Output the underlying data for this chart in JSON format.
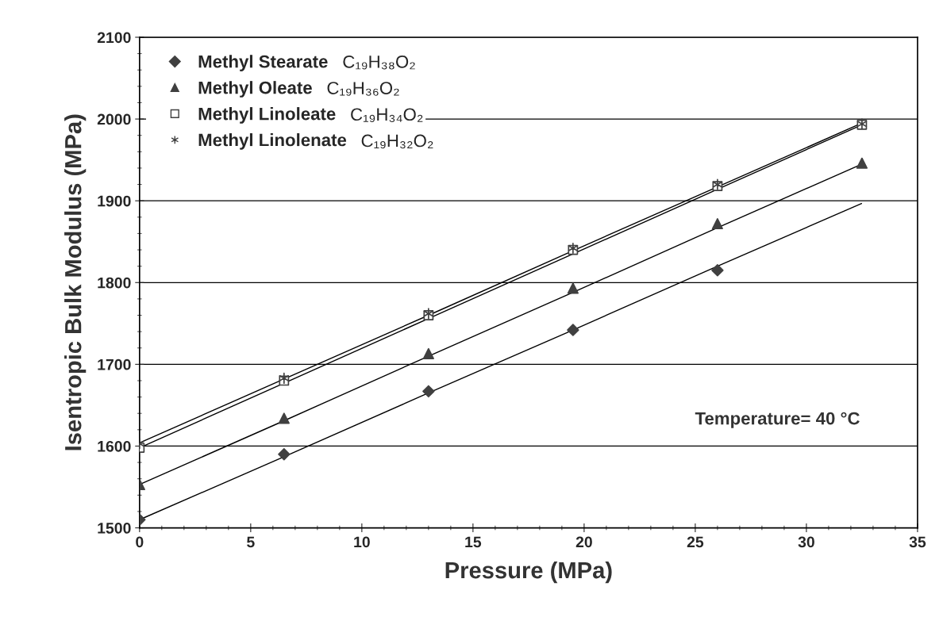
{
  "chart_data": {
    "type": "scatter",
    "xlabel": "Pressure (MPa)",
    "ylabel": "Isentropic Bulk Modulus (MPa)",
    "x": [
      0,
      6.5,
      13,
      19.5,
      26,
      32.5
    ],
    "series": [
      {
        "name": "Methyl Stearate",
        "marker": "diamond",
        "color": "#404040",
        "values": [
          1510,
          1590,
          1667,
          1742,
          1815,
          null
        ]
      },
      {
        "name": "Methyl Oleate",
        "marker": "triangle",
        "color": "#404040",
        "values": [
          1553,
          1634,
          1713,
          1793,
          1872,
          1946
        ]
      },
      {
        "name": "Methyl Linoleate",
        "marker": "square",
        "color": "#404040",
        "values": [
          1598,
          1680,
          1760,
          1840,
          1918,
          1993
        ]
      },
      {
        "name": "Methyl Linolenate",
        "marker": "cross",
        "color": "#404040",
        "values": [
          1603,
          1683,
          1762,
          1842,
          1920,
          1994
        ]
      },
      {
        "type": "line",
        "color": "#000000",
        "values": [
          1510,
          1587,
          1665,
          1742,
          1820,
          1897
        ]
      },
      {
        "type": "line",
        "color": "#000000",
        "values": [
          1553,
          1631,
          1710,
          1788,
          1867,
          1945
        ]
      },
      {
        "type": "line",
        "color": "#000000",
        "values": [
          1598,
          1677,
          1756,
          1835,
          1914,
          1993
        ]
      },
      {
        "type": "line",
        "color": "#000000",
        "values": [
          1604,
          1682,
          1760,
          1839,
          1917,
          1995
        ]
      }
    ],
    "xlim": [
      0,
      35
    ],
    "xticks": [
      0,
      5,
      10,
      15,
      20,
      25,
      30,
      35
    ],
    "ylim": [
      1500,
      2100
    ],
    "yticks": [
      1500,
      1600,
      1700,
      1800,
      1900,
      2000,
      2100
    ],
    "grid": "y",
    "legend": "top left",
    "annotations": [
      "C₁₉H₃₈O₂",
      "C₁₉H₃₆O₂",
      "C₁₉H₃₄O₂",
      "C₁₉H₃₂O₂",
      "Temperature= 40 °C"
    ]
  }
}
